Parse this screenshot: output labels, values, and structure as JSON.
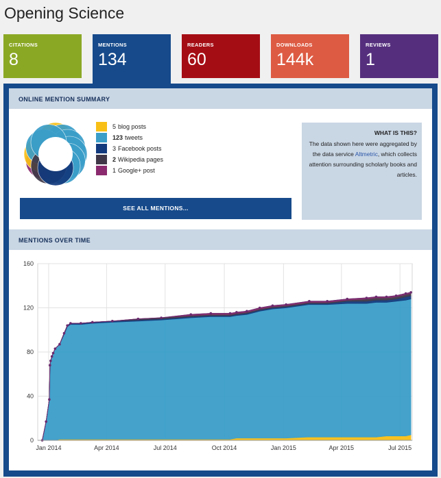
{
  "title": "Opening Science",
  "tiles": [
    {
      "label": "CITATIONS",
      "value": "8",
      "color": "#8ba825"
    },
    {
      "label": "MENTIONS",
      "value": "134",
      "color": "#164a8b"
    },
    {
      "label": "READERS",
      "value": "60",
      "color": "#a50d14"
    },
    {
      "label": "DOWNLOADS",
      "value": "144k",
      "color": "#dd5b43"
    },
    {
      "label": "REVIEWS",
      "value": "1",
      "color": "#552f7e"
    }
  ],
  "summary": {
    "heading": "ONLINE MENTION SUMMARY",
    "legend": [
      {
        "count": "5",
        "text": "blog posts",
        "color": "#f8bf16",
        "bold": false
      },
      {
        "count": "123",
        "text": "tweets",
        "color": "#3a9ec9",
        "bold": true
      },
      {
        "count": "3",
        "text": "Facebook posts",
        "color": "#123a7d",
        "bold": false
      },
      {
        "count": "2",
        "text": "Wikipedia pages",
        "color": "#403848",
        "bold": true
      },
      {
        "count": "1",
        "text": "Google+ post",
        "color": "#8b2a6e",
        "bold": false
      }
    ],
    "see_all": "SEE ALL MENTIONS...",
    "info": {
      "heading": "WHAT IS THIS?",
      "line1": "The data shown here were aggregated by the data service",
      "link": "Altmetric",
      "line2": ", which collects attention surrounding scholarly books and articles."
    }
  },
  "timeline": {
    "heading": "MENTIONS OVER TIME"
  },
  "chart_data": {
    "type": "area",
    "x": [
      "2013-12-22",
      "2013-12-28",
      "2014-01-02",
      "2014-01-03",
      "2014-01-04",
      "2014-01-06",
      "2014-01-08",
      "2014-01-11",
      "2014-01-18",
      "2014-01-25",
      "2014-01-30",
      "2014-02-04",
      "2014-02-20",
      "2014-03-10",
      "2014-04-10",
      "2014-05-20",
      "2014-06-25",
      "2014-08-10",
      "2014-09-10",
      "2014-10-10",
      "2014-10-20",
      "2014-11-05",
      "2014-11-25",
      "2014-12-15",
      "2015-01-05",
      "2015-02-10",
      "2015-03-10",
      "2015-04-10",
      "2015-05-10",
      "2015-05-25",
      "2015-06-10",
      "2015-06-25",
      "2015-07-10",
      "2015-07-18"
    ],
    "series": [
      {
        "name": "blog posts",
        "color": "#f8bf16",
        "values": [
          0,
          0,
          0,
          0,
          0,
          0,
          0,
          0,
          1,
          1,
          1,
          1,
          1,
          1,
          1,
          1,
          1,
          1,
          1,
          1,
          2,
          2,
          2,
          2,
          2,
          3,
          3,
          3,
          3,
          3,
          4,
          4,
          4,
          5
        ]
      },
      {
        "name": "tweets",
        "color": "#3a9ec9",
        "values": [
          0,
          17,
          37,
          68,
          72,
          76,
          79,
          83,
          86,
          95,
          102,
          104,
          104,
          105,
          106,
          107,
          108,
          110,
          111,
          111,
          111,
          112,
          115,
          117,
          118,
          120,
          120,
          121,
          121,
          122,
          121,
          122,
          123,
          123
        ]
      },
      {
        "name": "Facebook posts",
        "color": "#123a7d",
        "values": [
          0,
          0,
          0,
          0,
          0,
          0,
          0,
          0,
          0,
          1,
          1,
          1,
          1,
          1,
          1,
          1,
          1,
          1,
          1,
          1,
          1,
          1,
          1,
          1,
          1,
          1,
          1,
          2,
          2,
          2,
          2,
          2,
          3,
          3
        ]
      },
      {
        "name": "Wikipedia pages",
        "color": "#403848",
        "values": [
          0,
          0,
          0,
          0,
          0,
          0,
          0,
          0,
          0,
          0,
          0,
          0,
          0,
          0,
          0,
          1,
          1,
          1,
          1,
          1,
          1,
          1,
          1,
          1,
          1,
          1,
          1,
          1,
          2,
          2,
          2,
          2,
          2,
          2
        ]
      },
      {
        "name": "Google+ post",
        "color": "#8b2a6e",
        "values": [
          0,
          0,
          0,
          0,
          0,
          0,
          0,
          0,
          0,
          0,
          0,
          0,
          0,
          0,
          0,
          0,
          0,
          1,
          1,
          1,
          1,
          1,
          1,
          1,
          1,
          1,
          1,
          1,
          1,
          1,
          1,
          1,
          1,
          1
        ]
      }
    ],
    "xticks": [
      {
        "date": "2014-01-01",
        "label": "Jan 2014"
      },
      {
        "date": "2014-04-01",
        "label": "Apr 2014"
      },
      {
        "date": "2014-07-01",
        "label": "Jul 2014"
      },
      {
        "date": "2014-10-01",
        "label": "Oct 2014"
      },
      {
        "date": "2015-01-01",
        "label": "Jan 2015"
      },
      {
        "date": "2015-04-01",
        "label": "Apr 2015"
      },
      {
        "date": "2015-07-01",
        "label": "Jul 2015"
      }
    ],
    "yticks": [
      0,
      40,
      80,
      120,
      160
    ],
    "xlim": [
      "2013-12-15",
      "2015-07-20"
    ],
    "ylim": [
      0,
      160
    ],
    "grid": true
  }
}
